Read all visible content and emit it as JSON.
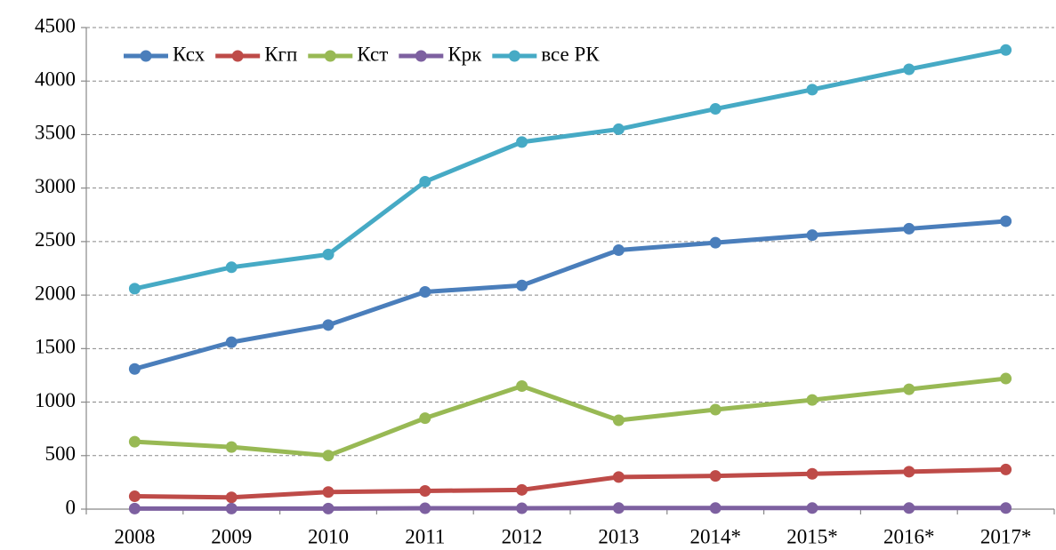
{
  "chart_data": {
    "type": "line",
    "categories": [
      "2008",
      "2009",
      "2010",
      "2011",
      "2012",
      "2013",
      "2014*",
      "2015*",
      "2016*",
      "2017*"
    ],
    "series": [
      {
        "name": "Ксх",
        "color": "#4a7ebb",
        "values": [
          1310,
          1560,
          1720,
          2030,
          2090,
          2420,
          2490,
          2560,
          2620,
          2690
        ]
      },
      {
        "name": "Кгп",
        "color": "#be4b48",
        "values": [
          120,
          110,
          160,
          170,
          180,
          300,
          310,
          330,
          350,
          370
        ]
      },
      {
        "name": "Кст",
        "color": "#98b954",
        "values": [
          630,
          580,
          500,
          850,
          1150,
          830,
          930,
          1020,
          1120,
          1220
        ]
      },
      {
        "name": "Крк",
        "color": "#7d60a0",
        "values": [
          5,
          5,
          5,
          8,
          8,
          10,
          10,
          10,
          10,
          10
        ]
      },
      {
        "name": "все РК",
        "color": "#46aac5",
        "values": [
          2060,
          2260,
          2380,
          3060,
          3430,
          3550,
          3740,
          3920,
          4110,
          4290
        ]
      }
    ],
    "ylim": [
      0,
      4500
    ],
    "yticks": [
      0,
      500,
      1000,
      1500,
      2000,
      2500,
      3000,
      3500,
      4000,
      4500
    ],
    "grid": true,
    "legend": "top-left"
  }
}
